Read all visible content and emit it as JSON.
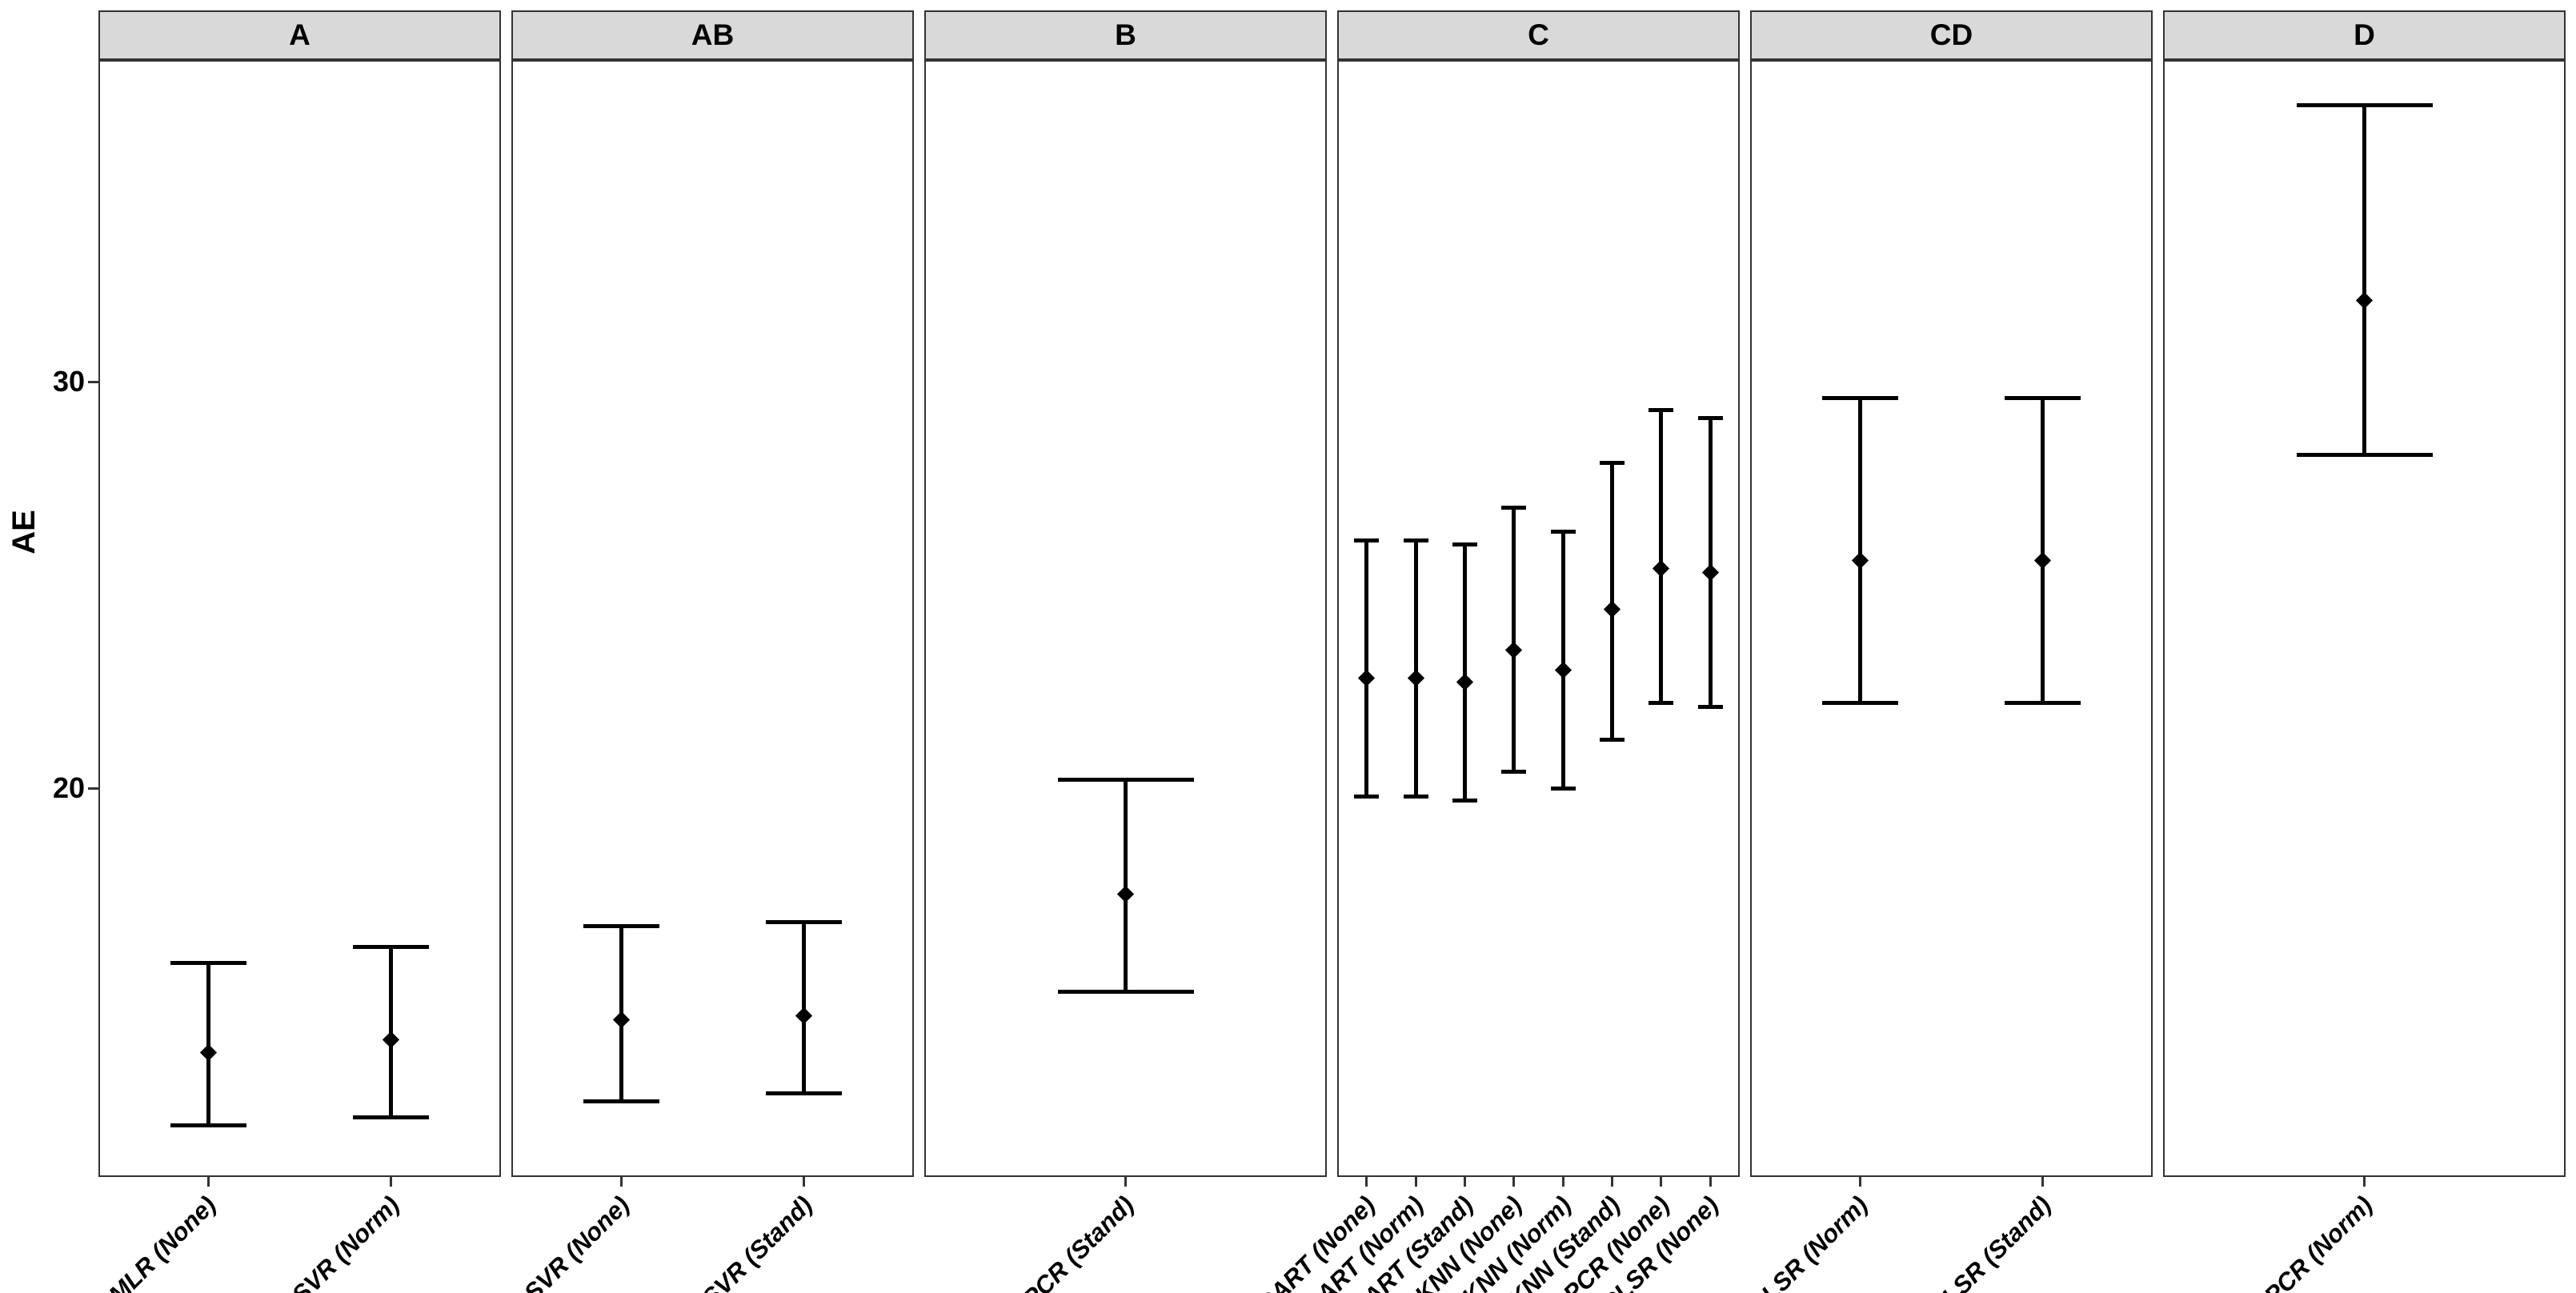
{
  "colors": {
    "background": "#FFFFFF",
    "strip_fill": "#D9D9D9",
    "border": "#333333",
    "data": "#000000"
  },
  "y_axis": {
    "title": "AE",
    "tick_labels": [
      "30",
      "20"
    ],
    "tick_values": [
      30,
      20
    ]
  },
  "chart_data": {
    "type": "errorbar",
    "title": "",
    "xlabel": "",
    "ylabel": "AE",
    "ylim": [
      10.4,
      37.9
    ],
    "y_ticks": [
      20,
      30
    ],
    "grid": false,
    "legend": "none",
    "facet_labels": [
      "A",
      "AB",
      "B",
      "C",
      "CD",
      "D"
    ],
    "facets": [
      {
        "label": "A",
        "points": [
          {
            "category": "MLR (None)",
            "mean": 13.5,
            "lower": 11.7,
            "upper": 15.7
          },
          {
            "category": "SVR (Norm)",
            "mean": 13.8,
            "lower": 11.9,
            "upper": 16.1
          }
        ]
      },
      {
        "label": "AB",
        "points": [
          {
            "category": "SVR (None)",
            "mean": 14.3,
            "lower": 12.3,
            "upper": 16.6
          },
          {
            "category": "SVR (Stand)",
            "mean": 14.4,
            "lower": 12.5,
            "upper": 16.7
          }
        ]
      },
      {
        "label": "B",
        "points": [
          {
            "category": "PCR (Stand)",
            "mean": 17.4,
            "lower": 15.0,
            "upper": 20.2
          }
        ]
      },
      {
        "label": "C",
        "points": [
          {
            "category": "CART (None)",
            "mean": 22.7,
            "lower": 19.8,
            "upper": 26.1
          },
          {
            "category": "CART (Norm)",
            "mean": 22.7,
            "lower": 19.8,
            "upper": 26.1
          },
          {
            "category": "CART (Stand)",
            "mean": 22.6,
            "lower": 19.7,
            "upper": 26.0
          },
          {
            "category": "KNN (None)",
            "mean": 23.4,
            "lower": 20.4,
            "upper": 26.9
          },
          {
            "category": "KNN (Norm)",
            "mean": 22.9,
            "lower": 20.0,
            "upper": 26.3
          },
          {
            "category": "KNN (Stand)",
            "mean": 24.4,
            "lower": 21.2,
            "upper": 28.0
          },
          {
            "category": "PCR (None)",
            "mean": 25.4,
            "lower": 22.1,
            "upper": 29.3
          },
          {
            "category": "PLSR (None)",
            "mean": 25.3,
            "lower": 22.0,
            "upper": 29.1
          }
        ]
      },
      {
        "label": "CD",
        "points": [
          {
            "category": "PLSR (Norm)",
            "mean": 25.6,
            "lower": 22.1,
            "upper": 29.6
          },
          {
            "category": "PLSR (Stand)",
            "mean": 25.6,
            "lower": 22.1,
            "upper": 29.6
          }
        ]
      },
      {
        "label": "D",
        "points": [
          {
            "category": "PCR (Norm)",
            "mean": 32.0,
            "lower": 28.2,
            "upper": 36.8
          }
        ]
      }
    ]
  }
}
